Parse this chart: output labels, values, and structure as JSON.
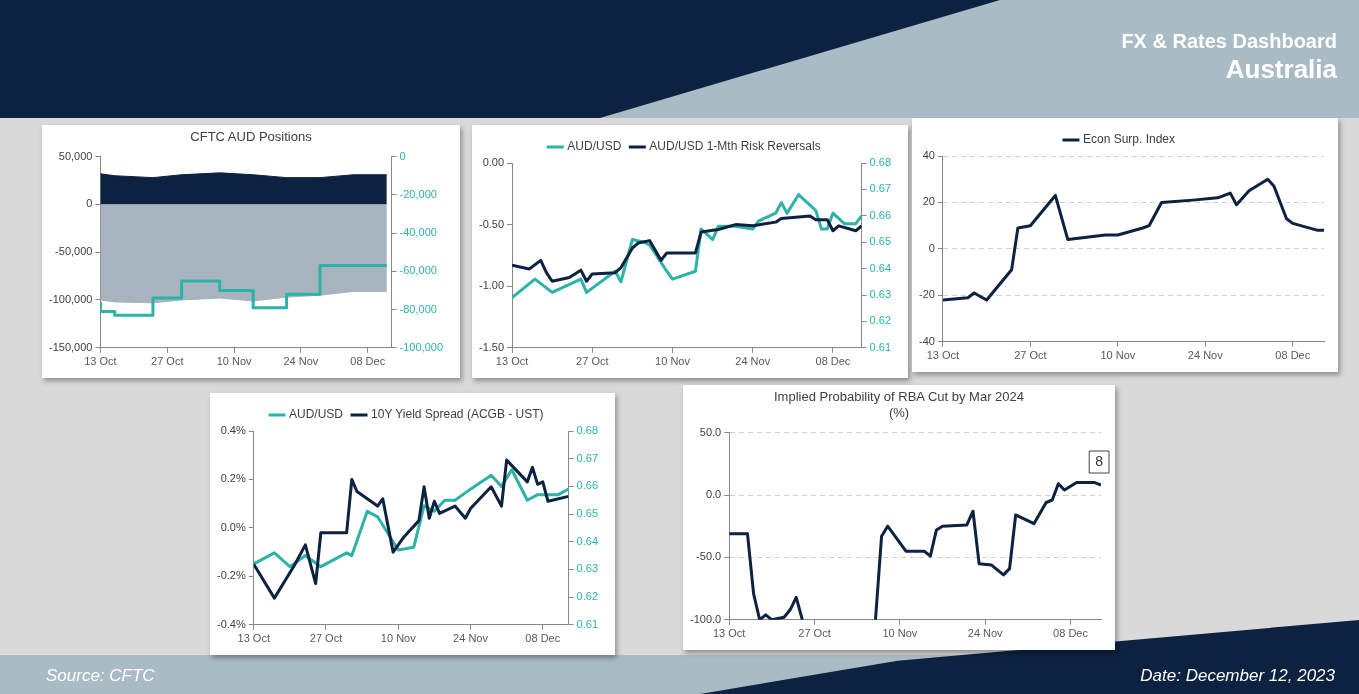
{
  "chart_data": [
    {
      "type": "other",
      "title": "FX & Rates Dashboard",
      "subtitle": "Australia",
      "annotations": [
        "Source: CFTC",
        "Date: December 12, 2023"
      ]
    },
    {
      "type": "area",
      "title": "CFTC AUD Positions",
      "x": [
        "2023-10-13",
        "2023-10-16",
        "2023-10-24",
        "2023-10-30",
        "2023-11-07",
        "2023-11-14",
        "2023-11-21",
        "2023-11-28",
        "2023-12-05",
        "2023-12-12"
      ],
      "series": [
        {
          "type": "area",
          "color": "#0d2240",
          "values": [
            32000,
            30000,
            28000,
            31000,
            33000,
            31000,
            28000,
            28000,
            31000,
            31000
          ]
        },
        {
          "type": "area",
          "color": "#a7b4be",
          "values": [
            -100000,
            -102000,
            -103000,
            -100000,
            -98000,
            -101000,
            -97000,
            -95000,
            -91000,
            -91000
          ]
        },
        {
          "type": "step",
          "axis": "y2",
          "color": "#2ab3a6",
          "values": [
            -76000,
            -81000,
            -83000,
            -74000,
            -65000,
            -70000,
            -79000,
            -72000,
            -57000,
            -57000
          ]
        }
      ],
      "xlim": [
        "2023-10-13",
        "2023-12-13"
      ],
      "xticks": [
        {
          "value": "2023-10-13",
          "label": "13 Oct"
        },
        {
          "value": "2023-10-27",
          "label": "27 Oct"
        },
        {
          "value": "2023-11-10",
          "label": "10 Nov"
        },
        {
          "value": "2023-11-24",
          "label": "24 Nov"
        },
        {
          "value": "2023-12-08",
          "label": "08 Dec"
        }
      ],
      "ylim": [
        -150000,
        50000
      ],
      "yticks": [
        {
          "value": -150000,
          "label": "-150,000"
        },
        {
          "value": -100000,
          "label": "-100,000"
        },
        {
          "value": -50000,
          "label": "-50,000"
        },
        0,
        {
          "value": 50000,
          "label": "50,000"
        }
      ],
      "y2lim": [
        -100000,
        0
      ],
      "y2ticks": [
        {
          "value": -100000,
          "label": "-100,000"
        },
        {
          "value": -80000,
          "label": "-80,000"
        },
        {
          "value": -60000,
          "label": "-60,000"
        },
        {
          "value": -40000,
          "label": "-40,000"
        },
        {
          "value": -20000,
          "label": "-20,000"
        },
        0
      ]
    },
    {
      "type": "line",
      "legend": "top",
      "series": [
        {
          "name": "AUD/USD",
          "axis": "y2",
          "color": "#2ab3a6",
          "x": [
            "2023-10-13",
            "2023-10-17",
            "2023-10-20",
            "2023-10-25",
            "2023-10-26",
            "2023-10-31",
            "2023-11-01",
            "2023-11-03",
            "2023-11-05",
            "2023-11-06",
            "2023-11-09",
            "2023-11-10",
            "2023-11-14",
            "2023-11-15",
            "2023-11-17",
            "2023-11-18",
            "2023-11-21",
            "2023-11-24",
            "2023-11-25",
            "2023-11-28",
            "2023-11-29",
            "2023-11-30",
            "2023-12-02",
            "2023-12-05",
            "2023-12-06",
            "2023-12-07",
            "2023-12-08",
            "2023-12-10",
            "2023-12-12",
            "2023-12-13"
          ],
          "values": [
            0.629,
            0.636,
            0.631,
            0.636,
            0.631,
            0.639,
            0.635,
            0.651,
            0.65,
            0.649,
            0.639,
            0.636,
            0.639,
            0.655,
            0.651,
            0.656,
            0.656,
            0.655,
            0.658,
            0.661,
            0.665,
            0.661,
            0.668,
            0.662,
            0.655,
            0.655,
            0.661,
            0.657,
            0.657,
            0.66
          ]
        },
        {
          "name": "AUD/USD 1-Mth Risk Reversals",
          "color": "#0d2240",
          "x": [
            "2023-10-13",
            "2023-10-16",
            "2023-10-18",
            "2023-10-19",
            "2023-10-20",
            "2023-10-23",
            "2023-10-25",
            "2023-10-26",
            "2023-10-27",
            "2023-10-31",
            "2023-11-01",
            "2023-11-03",
            "2023-11-04",
            "2023-11-06",
            "2023-11-08",
            "2023-11-09",
            "2023-11-14",
            "2023-11-15",
            "2023-11-18",
            "2023-11-21",
            "2023-11-24",
            "2023-11-28",
            "2023-11-29",
            "2023-12-04",
            "2023-12-05",
            "2023-12-07",
            "2023-12-08",
            "2023-12-09",
            "2023-12-12",
            "2023-12-13"
          ],
          "values": [
            -0.83,
            -0.86,
            -0.79,
            -0.89,
            -0.96,
            -0.93,
            -0.87,
            -0.96,
            -0.9,
            -0.89,
            -0.85,
            -0.69,
            -0.65,
            -0.63,
            -0.79,
            -0.73,
            -0.73,
            -0.56,
            -0.54,
            -0.5,
            -0.51,
            -0.48,
            -0.45,
            -0.43,
            -0.46,
            -0.46,
            -0.55,
            -0.51,
            -0.55,
            -0.51
          ]
        }
      ],
      "xlim": [
        "2023-10-13",
        "2023-12-13"
      ],
      "xticks": [
        {
          "value": "2023-10-13",
          "label": "13 Oct"
        },
        {
          "value": "2023-10-27",
          "label": "27 Oct"
        },
        {
          "value": "2023-11-10",
          "label": "10 Nov"
        },
        {
          "value": "2023-11-24",
          "label": "24 Nov"
        },
        {
          "value": "2023-12-08",
          "label": "08 Dec"
        }
      ],
      "ylim": [
        -1.5,
        0
      ],
      "yticks": [
        {
          "value": -1.5,
          "label": "-1.50"
        },
        {
          "value": -1,
          "label": "-1.00"
        },
        {
          "value": -0.5,
          "label": "-0.50"
        },
        {
          "value": 0,
          "label": "0.00"
        }
      ],
      "y2lim": [
        0.61,
        0.68
      ],
      "y2ticks": [
        0.61,
        0.62,
        0.63,
        0.64,
        0.65,
        0.66,
        0.67,
        0.68
      ]
    },
    {
      "type": "line",
      "legend": "top",
      "grid": "y",
      "x": [
        "2023-10-13",
        "2023-10-17",
        "2023-10-18",
        "2023-10-20",
        "2023-10-24",
        "2023-10-25",
        "2023-10-27",
        "2023-10-31",
        "2023-11-02",
        "2023-11-08",
        "2023-11-10",
        "2023-11-14",
        "2023-11-15",
        "2023-11-17",
        "2023-11-22",
        "2023-11-26",
        "2023-11-28",
        "2023-11-29",
        "2023-12-01",
        "2023-12-04",
        "2023-12-05",
        "2023-12-07",
        "2023-12-08",
        "2023-12-12",
        "2023-12-13"
      ],
      "series": [
        {
          "name": "Econ Surp. Index",
          "color": "#0d2240",
          "values": [
            -22,
            -21,
            -19,
            -22,
            -9,
            9,
            10,
            23,
            4,
            6,
            6,
            9,
            10,
            20,
            21,
            22,
            24,
            19,
            25,
            30,
            27,
            13,
            11,
            8,
            8
          ]
        }
      ],
      "xlim": [
        "2023-10-13",
        "2023-12-13"
      ],
      "xticks": [
        {
          "value": "2023-10-13",
          "label": "13 Oct"
        },
        {
          "value": "2023-10-27",
          "label": "27 Oct"
        },
        {
          "value": "2023-11-10",
          "label": "10 Nov"
        },
        {
          "value": "2023-11-24",
          "label": "24 Nov"
        },
        {
          "value": "2023-12-08",
          "label": "08 Dec"
        }
      ],
      "ylim": [
        -40,
        40
      ],
      "yticks": [
        -40,
        -20,
        0,
        20,
        40
      ]
    },
    {
      "type": "line",
      "legend": "top",
      "series": [
        {
          "name": "AUD/USD",
          "axis": "y2",
          "color": "#2ab3a6",
          "x": [
            "2023-10-13",
            "2023-10-17",
            "2023-10-20",
            "2023-10-23",
            "2023-10-26",
            "2023-10-31",
            "2023-11-01",
            "2023-11-04",
            "2023-11-06",
            "2023-11-10",
            "2023-11-13",
            "2023-11-15",
            "2023-11-17",
            "2023-11-19",
            "2023-11-21",
            "2023-11-24",
            "2023-11-28",
            "2023-11-30",
            "2023-12-02",
            "2023-12-05",
            "2023-12-07",
            "2023-12-08",
            "2023-12-11",
            "2023-12-13"
          ],
          "values": [
            0.632,
            0.636,
            0.631,
            0.635,
            0.631,
            0.636,
            0.635,
            0.651,
            0.649,
            0.637,
            0.638,
            0.653,
            0.651,
            0.655,
            0.655,
            0.659,
            0.664,
            0.66,
            0.666,
            0.655,
            0.657,
            0.657,
            0.657,
            0.659
          ]
        },
        {
          "name": "10Y Yield Spread (ACGB - UST)",
          "color": "#0d2240",
          "x": [
            "2023-10-13",
            "2023-10-17",
            "2023-10-21",
            "2023-10-23",
            "2023-10-25",
            "2023-10-26",
            "2023-10-28",
            "2023-10-31",
            "2023-11-01",
            "2023-11-02",
            "2023-11-06",
            "2023-11-07",
            "2023-11-09",
            "2023-11-11",
            "2023-11-14",
            "2023-11-15",
            "2023-11-16",
            "2023-11-17",
            "2023-11-18",
            "2023-11-21",
            "2023-11-23",
            "2023-11-24",
            "2023-11-28",
            "2023-11-30",
            "2023-12-01",
            "2023-12-05",
            "2023-12-06",
            "2023-12-07",
            "2023-12-08",
            "2023-12-09",
            "2023-12-13"
          ],
          "values": [
            -0.15,
            -0.29,
            -0.15,
            -0.07,
            -0.23,
            -0.02,
            -0.02,
            -0.02,
            0.2,
            0.15,
            0.09,
            0.12,
            -0.1,
            -0.04,
            0.03,
            0.17,
            0.04,
            0.11,
            0.06,
            0.09,
            0.04,
            0.08,
            0.17,
            0.09,
            0.28,
            0.19,
            0.25,
            0.18,
            0.19,
            0.11,
            0.13
          ]
        }
      ],
      "xlim": [
        "2023-10-13",
        "2023-12-13"
      ],
      "xticks": [
        {
          "value": "2023-10-13",
          "label": "13 Oct"
        },
        {
          "value": "2023-10-27",
          "label": "27 Oct"
        },
        {
          "value": "2023-11-10",
          "label": "10 Nov"
        },
        {
          "value": "2023-11-24",
          "label": "24 Nov"
        },
        {
          "value": "2023-12-08",
          "label": "08 Dec"
        }
      ],
      "ylim": [
        -0.4,
        0.4
      ],
      "yticks": [
        {
          "value": -0.4,
          "label": "-0.4%"
        },
        {
          "value": -0.2,
          "label": "-0.2%"
        },
        {
          "value": 0,
          "label": "0.0%"
        },
        {
          "value": 0.2,
          "label": "0.2%"
        },
        {
          "value": 0.4,
          "label": "0.4%"
        }
      ],
      "y2lim": [
        0.61,
        0.68
      ],
      "y2ticks": [
        0.61,
        0.62,
        0.63,
        0.64,
        0.65,
        0.66,
        0.67,
        0.68
      ]
    },
    {
      "type": "line",
      "title": "Implied Probability of RBA Cut by Mar 2024",
      "subtitle": "(%)",
      "grid": "y",
      "x": [
        "2023-10-13",
        "2023-10-16",
        "2023-10-17",
        "2023-10-18",
        "2023-10-19",
        "2023-10-20",
        "2023-10-22",
        "2023-10-23",
        "2023-10-24",
        "2023-10-25",
        "2023-10-31",
        "2023-11-06",
        "2023-11-07",
        "2023-11-08",
        "2023-11-11",
        "2023-11-14",
        "2023-11-15",
        "2023-11-16",
        "2023-11-17",
        "2023-11-21",
        "2023-11-22",
        "2023-11-23",
        "2023-11-25",
        "2023-11-27",
        "2023-11-28",
        "2023-11-29",
        "2023-12-02",
        "2023-12-04",
        "2023-12-05",
        "2023-12-06",
        "2023-12-07",
        "2023-12-09",
        "2023-12-12",
        "2023-12-13"
      ],
      "series": [
        {
          "color": "#0d2240",
          "values": [
            -31,
            -31,
            -79,
            -100,
            -96,
            -100,
            -98,
            -92,
            -82,
            -100,
            null,
            -100,
            -33,
            -25,
            -45,
            -45,
            -49,
            -28,
            -25,
            -24,
            -13,
            -55,
            -56,
            -64,
            -59,
            -16,
            -23,
            -6,
            -4,
            9,
            4,
            10,
            10,
            8
          ],
          "value_labels": [
            null,
            null,
            null,
            null,
            null,
            null,
            null,
            null,
            null,
            null,
            null,
            null,
            null,
            null,
            null,
            null,
            null,
            null,
            null,
            null,
            null,
            null,
            null,
            null,
            null,
            null,
            null,
            null,
            null,
            null,
            null,
            null,
            null,
            "8"
          ]
        }
      ],
      "xlim": [
        "2023-10-13",
        "2023-12-13"
      ],
      "xticks": [
        {
          "value": "2023-10-13",
          "label": "13 Oct"
        },
        {
          "value": "2023-10-27",
          "label": "27 Oct"
        },
        {
          "value": "2023-11-10",
          "label": "10 Nov"
        },
        {
          "value": "2023-11-24",
          "label": "24 Nov"
        },
        {
          "value": "2023-12-08",
          "label": "08 Dec"
        }
      ],
      "ylim": [
        -100,
        50
      ],
      "yticks": [
        {
          "value": -100,
          "label": "-100.0"
        },
        {
          "value": -50,
          "label": "-50.0"
        },
        {
          "value": 0,
          "label": "0.0"
        },
        {
          "value": 50,
          "label": "50.0"
        }
      ]
    }
  ]
}
